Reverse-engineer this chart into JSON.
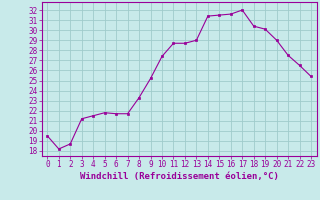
{
  "x": [
    0,
    1,
    2,
    3,
    4,
    5,
    6,
    7,
    8,
    9,
    10,
    11,
    12,
    13,
    14,
    15,
    16,
    17,
    18,
    19,
    20,
    21,
    22,
    23
  ],
  "y": [
    19.5,
    18.2,
    18.7,
    21.2,
    21.5,
    21.8,
    21.7,
    21.7,
    23.3,
    25.2,
    27.4,
    28.7,
    28.7,
    29.0,
    31.4,
    31.5,
    31.6,
    32.0,
    30.4,
    30.1,
    29.0,
    27.5,
    26.5,
    25.4
  ],
  "line_color": "#990099",
  "marker": "s",
  "marker_size": 2,
  "bg_color": "#c8eaea",
  "grid_color": "#a0cccc",
  "ylabel_ticks": [
    18,
    19,
    20,
    21,
    22,
    23,
    24,
    25,
    26,
    27,
    28,
    29,
    30,
    31,
    32
  ],
  "ylim": [
    17.5,
    32.8
  ],
  "xlim": [
    -0.5,
    23.5
  ],
  "xlabel": "Windchill (Refroidissement éolien,°C)",
  "tick_fontsize": 5.5,
  "label_fontsize": 6.5
}
